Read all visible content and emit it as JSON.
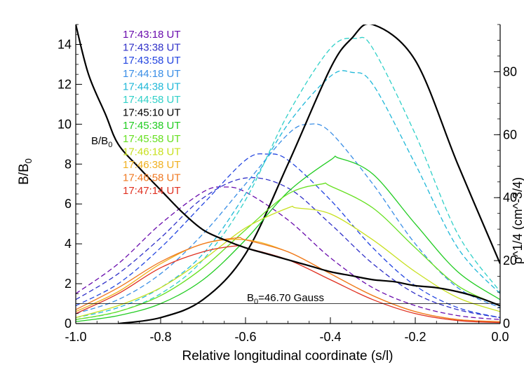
{
  "chart_data": {
    "type": "line",
    "xlabel": "Relative longitudinal coordinate (s/l)",
    "ylabel_main": "B/B",
    "ylabel_sub": "0",
    "ylabel_right": "ρ^1/4 (cm^-3/4)",
    "xlim": [
      -1.0,
      0.0
    ],
    "ylim": [
      0,
      15
    ],
    "ylim_right": [
      0,
      95
    ],
    "x_ticks": [
      "-1.0",
      "-0.8",
      "-0.6",
      "-0.4",
      "-0.2",
      "0.0"
    ],
    "y_ticks": [
      "0",
      "2",
      "4",
      "6",
      "8",
      "10",
      "12",
      "14"
    ],
    "y_ticks_right": [
      "0",
      "20",
      "40",
      "60",
      "80"
    ],
    "reference_line": {
      "y": 1.0,
      "label_main": "B",
      "label_sub": "0",
      "label_rest": "=46.70 Gauss"
    },
    "bb0_label_main": "B/B",
    "bb0_label_sub": "0",
    "legend_placement": "top-left",
    "series": [
      {
        "name": "17:43:18 UT",
        "color": "#6a0dad",
        "dash": true,
        "x": [
          -1.0,
          -0.9,
          -0.8,
          -0.7,
          -0.65,
          -0.6,
          -0.5,
          -0.4,
          -0.3,
          -0.2,
          -0.1,
          0.0
        ],
        "y": [
          1.5,
          3.0,
          5.0,
          6.6,
          6.85,
          6.6,
          5.2,
          3.3,
          1.8,
          0.9,
          0.4,
          0.2
        ]
      },
      {
        "name": "17:43:38 UT",
        "color": "#3030c8",
        "dash": true,
        "x": [
          -1.0,
          -0.9,
          -0.8,
          -0.7,
          -0.6,
          -0.5,
          -0.4,
          -0.3,
          -0.2,
          -0.1,
          0.0
        ],
        "y": [
          1.2,
          2.5,
          4.3,
          6.3,
          7.3,
          6.8,
          5.0,
          3.0,
          1.5,
          0.7,
          0.3
        ]
      },
      {
        "name": "17:43:58 UT",
        "color": "#2244e0",
        "dash": true,
        "x": [
          -1.0,
          -0.9,
          -0.8,
          -0.7,
          -0.6,
          -0.55,
          -0.5,
          -0.4,
          -0.3,
          -0.2,
          -0.1,
          0.0
        ],
        "y": [
          0.9,
          2.0,
          3.8,
          6.0,
          8.2,
          8.5,
          8.2,
          6.2,
          3.8,
          1.9,
          0.8,
          0.3
        ]
      },
      {
        "name": "17:44:18 UT",
        "color": "#3a8ee6",
        "dash": true,
        "x": [
          -1.0,
          -0.9,
          -0.8,
          -0.7,
          -0.6,
          -0.5,
          -0.45,
          -0.4,
          -0.3,
          -0.2,
          -0.1,
          0.0
        ],
        "y": [
          0.5,
          1.2,
          2.5,
          4.5,
          7.0,
          9.5,
          10.0,
          9.6,
          7.0,
          4.0,
          1.8,
          0.8
        ]
      },
      {
        "name": "17:44:38 UT",
        "color": "#20b8d8",
        "dash": true,
        "x": [
          -1.0,
          -0.9,
          -0.8,
          -0.7,
          -0.6,
          -0.5,
          -0.4,
          -0.35,
          -0.3,
          -0.2,
          -0.1,
          0.0
        ],
        "y": [
          0.3,
          0.8,
          1.8,
          3.5,
          6.5,
          10.0,
          12.4,
          12.6,
          12.0,
          8.0,
          3.8,
          1.5
        ]
      },
      {
        "name": "17:44:58 UT",
        "color": "#30d0c8",
        "dash": true,
        "x": [
          -1.0,
          -0.9,
          -0.8,
          -0.7,
          -0.6,
          -0.5,
          -0.4,
          -0.34,
          -0.3,
          -0.2,
          -0.1,
          0.0
        ],
        "y": [
          0.2,
          0.6,
          1.5,
          3.2,
          6.2,
          10.5,
          13.8,
          14.3,
          13.8,
          9.5,
          4.5,
          1.6
        ]
      },
      {
        "name": "17:45:10 UT",
        "color": "#000000",
        "dash": false,
        "width": 2.2,
        "x": [
          -0.9,
          -0.8,
          -0.7,
          -0.6,
          -0.5,
          -0.4,
          -0.35,
          -0.3,
          -0.2,
          -0.1,
          0.0
        ],
        "y": [
          0.0,
          0.3,
          1.2,
          3.5,
          8.0,
          12.8,
          14.3,
          15.0,
          13.2,
          8.0,
          3.0
        ]
      },
      {
        "name": "17:45:38 UT",
        "color": "#22cc22",
        "dash": false,
        "x": [
          -1.0,
          -0.9,
          -0.8,
          -0.7,
          -0.6,
          -0.5,
          -0.4,
          -0.38,
          -0.3,
          -0.2,
          -0.1,
          0.0
        ],
        "y": [
          0.1,
          0.4,
          1.0,
          2.2,
          4.2,
          6.6,
          8.2,
          8.3,
          7.5,
          5.0,
          2.6,
          1.2
        ]
      },
      {
        "name": "17:45:58 UT",
        "color": "#66e020",
        "dash": false,
        "x": [
          -1.0,
          -0.9,
          -0.8,
          -0.7,
          -0.6,
          -0.5,
          -0.42,
          -0.4,
          -0.3,
          -0.2,
          -0.1,
          0.0
        ],
        "y": [
          0.2,
          0.6,
          1.4,
          2.8,
          4.7,
          6.5,
          7.0,
          6.9,
          5.8,
          3.8,
          1.9,
          0.9
        ]
      },
      {
        "name": "17:46:18 UT",
        "color": "#c8e020",
        "dash": false,
        "x": [
          -1.0,
          -0.9,
          -0.8,
          -0.7,
          -0.6,
          -0.5,
          -0.48,
          -0.4,
          -0.3,
          -0.2,
          -0.1,
          0.0
        ],
        "y": [
          0.3,
          0.9,
          1.8,
          3.2,
          4.8,
          5.8,
          5.8,
          5.5,
          4.2,
          2.6,
          1.3,
          0.6
        ]
      },
      {
        "name": "17:46:38 UT",
        "color": "#f0b020",
        "dash": false,
        "x": [
          -1.0,
          -0.9,
          -0.8,
          -0.7,
          -0.6,
          -0.5,
          -0.4,
          -0.3,
          -0.2,
          -0.1,
          0.0
        ],
        "y": [
          0.6,
          1.6,
          3.0,
          4.0,
          4.2,
          3.6,
          2.5,
          1.4,
          0.6,
          0.2,
          0.1
        ]
      },
      {
        "name": "17:46:58 UT",
        "color": "#f07820",
        "dash": false,
        "x": [
          -1.0,
          -0.9,
          -0.8,
          -0.7,
          -0.62,
          -0.6,
          -0.5,
          -0.4,
          -0.3,
          -0.2,
          -0.1,
          0.0
        ],
        "y": [
          0.7,
          1.8,
          3.1,
          4.0,
          4.3,
          4.2,
          3.6,
          2.5,
          1.4,
          0.6,
          0.2,
          0.1
        ]
      },
      {
        "name": "17:47:14 UT",
        "color": "#e03020",
        "dash": false,
        "x": [
          -1.0,
          -0.9,
          -0.8,
          -0.7,
          -0.62,
          -0.6,
          -0.5,
          -0.4,
          -0.3,
          -0.2,
          -0.1,
          0.0
        ],
        "y": [
          0.5,
          1.5,
          2.8,
          3.6,
          3.9,
          3.8,
          3.2,
          2.2,
          1.2,
          0.5,
          0.15,
          0.05
        ]
      }
    ],
    "black_profile": {
      "name": "B/B0",
      "color": "#000000",
      "x": [
        -1.0,
        -0.97,
        -0.93,
        -0.9,
        -0.85,
        -0.8,
        -0.75,
        -0.7,
        -0.65,
        -0.6,
        -0.55,
        -0.5,
        -0.45,
        -0.4,
        -0.35,
        -0.3,
        -0.25,
        -0.2,
        -0.15,
        -0.1,
        -0.05,
        0.0
      ],
      "y": [
        15.0,
        12.5,
        10.5,
        9.0,
        7.8,
        6.7,
        5.6,
        4.7,
        4.2,
        3.8,
        3.5,
        3.2,
        2.9,
        2.6,
        2.4,
        2.2,
        2.1,
        1.9,
        1.8,
        1.6,
        1.3,
        0.9
      ]
    }
  }
}
